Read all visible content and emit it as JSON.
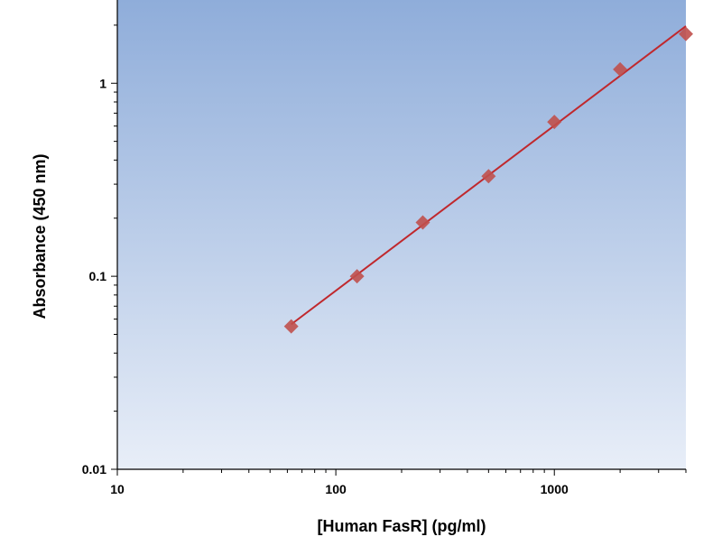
{
  "chart_data": {
    "type": "scatter",
    "title": "",
    "xlabel": "[Human FasR] (pg/ml)",
    "ylabel": "Absorbance (450 nm)",
    "xscale": "log",
    "yscale": "log",
    "xlim": [
      10,
      4000
    ],
    "ylim": [
      0.01,
      2.7
    ],
    "x_ticks": [
      {
        "value": 10,
        "label": "10"
      },
      {
        "value": 100,
        "label": "100"
      },
      {
        "value": 1000,
        "label": "1000"
      }
    ],
    "y_ticks": [
      {
        "value": 0.01,
        "label": "0.01"
      },
      {
        "value": 0.1,
        "label": "0.1"
      },
      {
        "value": 1,
        "label": "1"
      }
    ],
    "grid": false,
    "legend": "none",
    "series": [
      {
        "x": [
          62.5,
          125,
          250,
          500,
          1000,
          2000,
          4000
        ],
        "y": [
          0.055,
          0.1,
          0.19,
          0.33,
          0.63,
          1.18,
          1.8
        ],
        "marker": "diamond",
        "fit_line": true
      }
    ],
    "colors": {
      "marker": "#c0504d",
      "line": "#c0282d",
      "plot_bg_top": "#8fadda",
      "plot_bg_bottom": "#e8eef8"
    }
  }
}
